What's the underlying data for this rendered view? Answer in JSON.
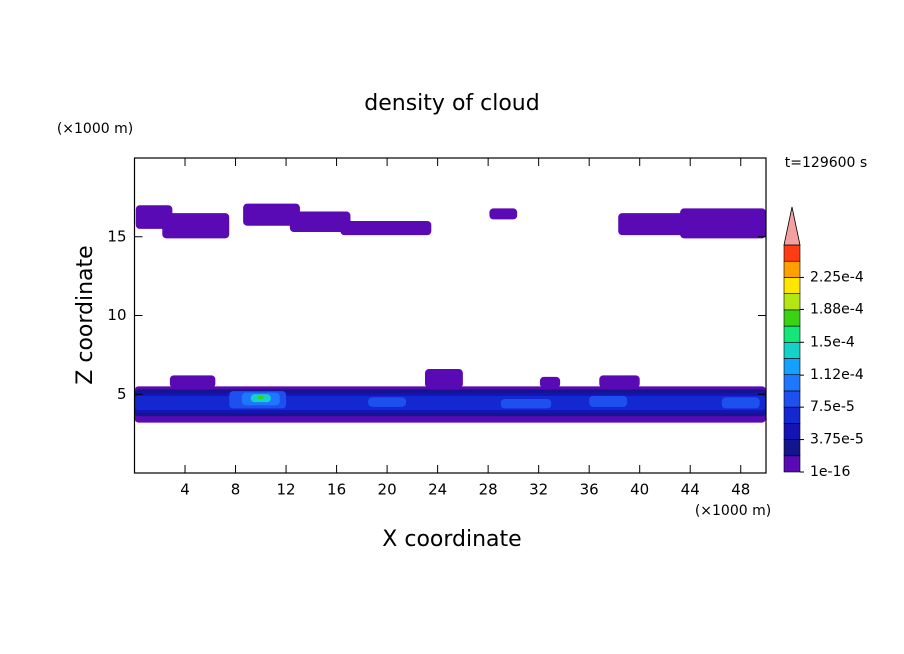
{
  "chart_data": {
    "type": "contour",
    "title": "density of cloud",
    "x_label": "X coordinate",
    "y_label": "Z coordinate",
    "x_unit": "(×1000 m)",
    "y_unit": "(×1000 m)",
    "annotation": "t=129600 s",
    "xlim": [
      0,
      50
    ],
    "ylim": [
      0,
      20
    ],
    "xticks": [
      4,
      8,
      12,
      16,
      20,
      24,
      28,
      32,
      36,
      40,
      44,
      48
    ],
    "yticks": [
      5,
      10,
      15
    ],
    "colorbar": {
      "lim": [
        1e-16,
        0.0002625
      ],
      "colors": [
        "#5a0ab4",
        "#14148c",
        "#1414b4",
        "#1428d2",
        "#1e50f0",
        "#1e78ff",
        "#14a0ff",
        "#14d2c8",
        "#14e678",
        "#3cd214",
        "#b4e614",
        "#ffe600",
        "#ffa000",
        "#ff3c14"
      ],
      "extend_color": "#f5a0a0",
      "ticks": [
        {
          "value": 1e-16,
          "label": "1e-16"
        },
        {
          "value": 3.75e-05,
          "label": "3.75e-5"
        },
        {
          "value": 7.5e-05,
          "label": "7.5e-5"
        },
        {
          "value": 0.000112,
          "label": "1.12e-4"
        },
        {
          "value": 0.00015,
          "label": "1.5e-4"
        },
        {
          "value": 0.000188,
          "label": "1.88e-4"
        },
        {
          "value": 0.000225,
          "label": "2.25e-4"
        }
      ]
    },
    "contours": [
      {
        "x": [
          0.1,
          3
        ],
        "z": [
          15.5,
          17
        ],
        "level": 0
      },
      {
        "x": [
          2.2,
          7.5
        ],
        "z": [
          14.9,
          16.5
        ],
        "level": 0
      },
      {
        "x": [
          8.6,
          13.1
        ],
        "z": [
          15.7,
          17.1
        ],
        "level": 0
      },
      {
        "x": [
          12.3,
          17.1
        ],
        "z": [
          15.3,
          16.6
        ],
        "level": 0
      },
      {
        "x": [
          16.3,
          23.5
        ],
        "z": [
          15.1,
          16
        ],
        "level": 0
      },
      {
        "x": [
          28.1,
          30.3
        ],
        "z": [
          16.1,
          16.8
        ],
        "level": 0
      },
      {
        "x": [
          38.3,
          44.8
        ],
        "z": [
          15.1,
          16.5
        ],
        "level": 0
      },
      {
        "x": [
          43.2,
          50
        ],
        "z": [
          14.9,
          16.8
        ],
        "level": 0
      },
      {
        "x": [
          0,
          50
        ],
        "z": [
          3.2,
          5.5
        ],
        "level": 0
      },
      {
        "x": [
          2.8,
          6.4
        ],
        "z": [
          5.4,
          6.2
        ],
        "level": 0
      },
      {
        "x": [
          23,
          26
        ],
        "z": [
          5.4,
          6.6
        ],
        "level": 0
      },
      {
        "x": [
          32.1,
          33.7
        ],
        "z": [
          5.4,
          6.1
        ],
        "level": 0
      },
      {
        "x": [
          36.8,
          40
        ],
        "z": [
          5.4,
          6.2
        ],
        "level": 0
      },
      {
        "x": [
          0,
          50
        ],
        "z": [
          3.6,
          5.3
        ],
        "level": 1
      },
      {
        "x": [
          0,
          50
        ],
        "z": [
          3.8,
          5.1
        ],
        "level": 2
      },
      {
        "x": [
          0,
          50
        ],
        "z": [
          4.0,
          4.9
        ],
        "level": 3
      },
      {
        "x": [
          7.5,
          12
        ],
        "z": [
          4.1,
          5.2
        ],
        "level": 4
      },
      {
        "x": [
          18.5,
          21.5
        ],
        "z": [
          4.2,
          4.8
        ],
        "level": 4
      },
      {
        "x": [
          29,
          33
        ],
        "z": [
          4.1,
          4.7
        ],
        "level": 4
      },
      {
        "x": [
          36,
          39
        ],
        "z": [
          4.2,
          4.9
        ],
        "level": 4
      },
      {
        "x": [
          46.5,
          49.5
        ],
        "z": [
          4.1,
          4.8
        ],
        "level": 4
      },
      {
        "x": [
          8.5,
          11.5
        ],
        "z": [
          4.3,
          5.1
        ],
        "level": 5
      },
      {
        "x": [
          9.2,
          10.8
        ],
        "z": [
          4.5,
          5.0
        ],
        "level": 7
      },
      {
        "x": [
          9.7,
          10.3
        ],
        "z": [
          4.7,
          4.9
        ],
        "level": 9
      }
    ]
  }
}
